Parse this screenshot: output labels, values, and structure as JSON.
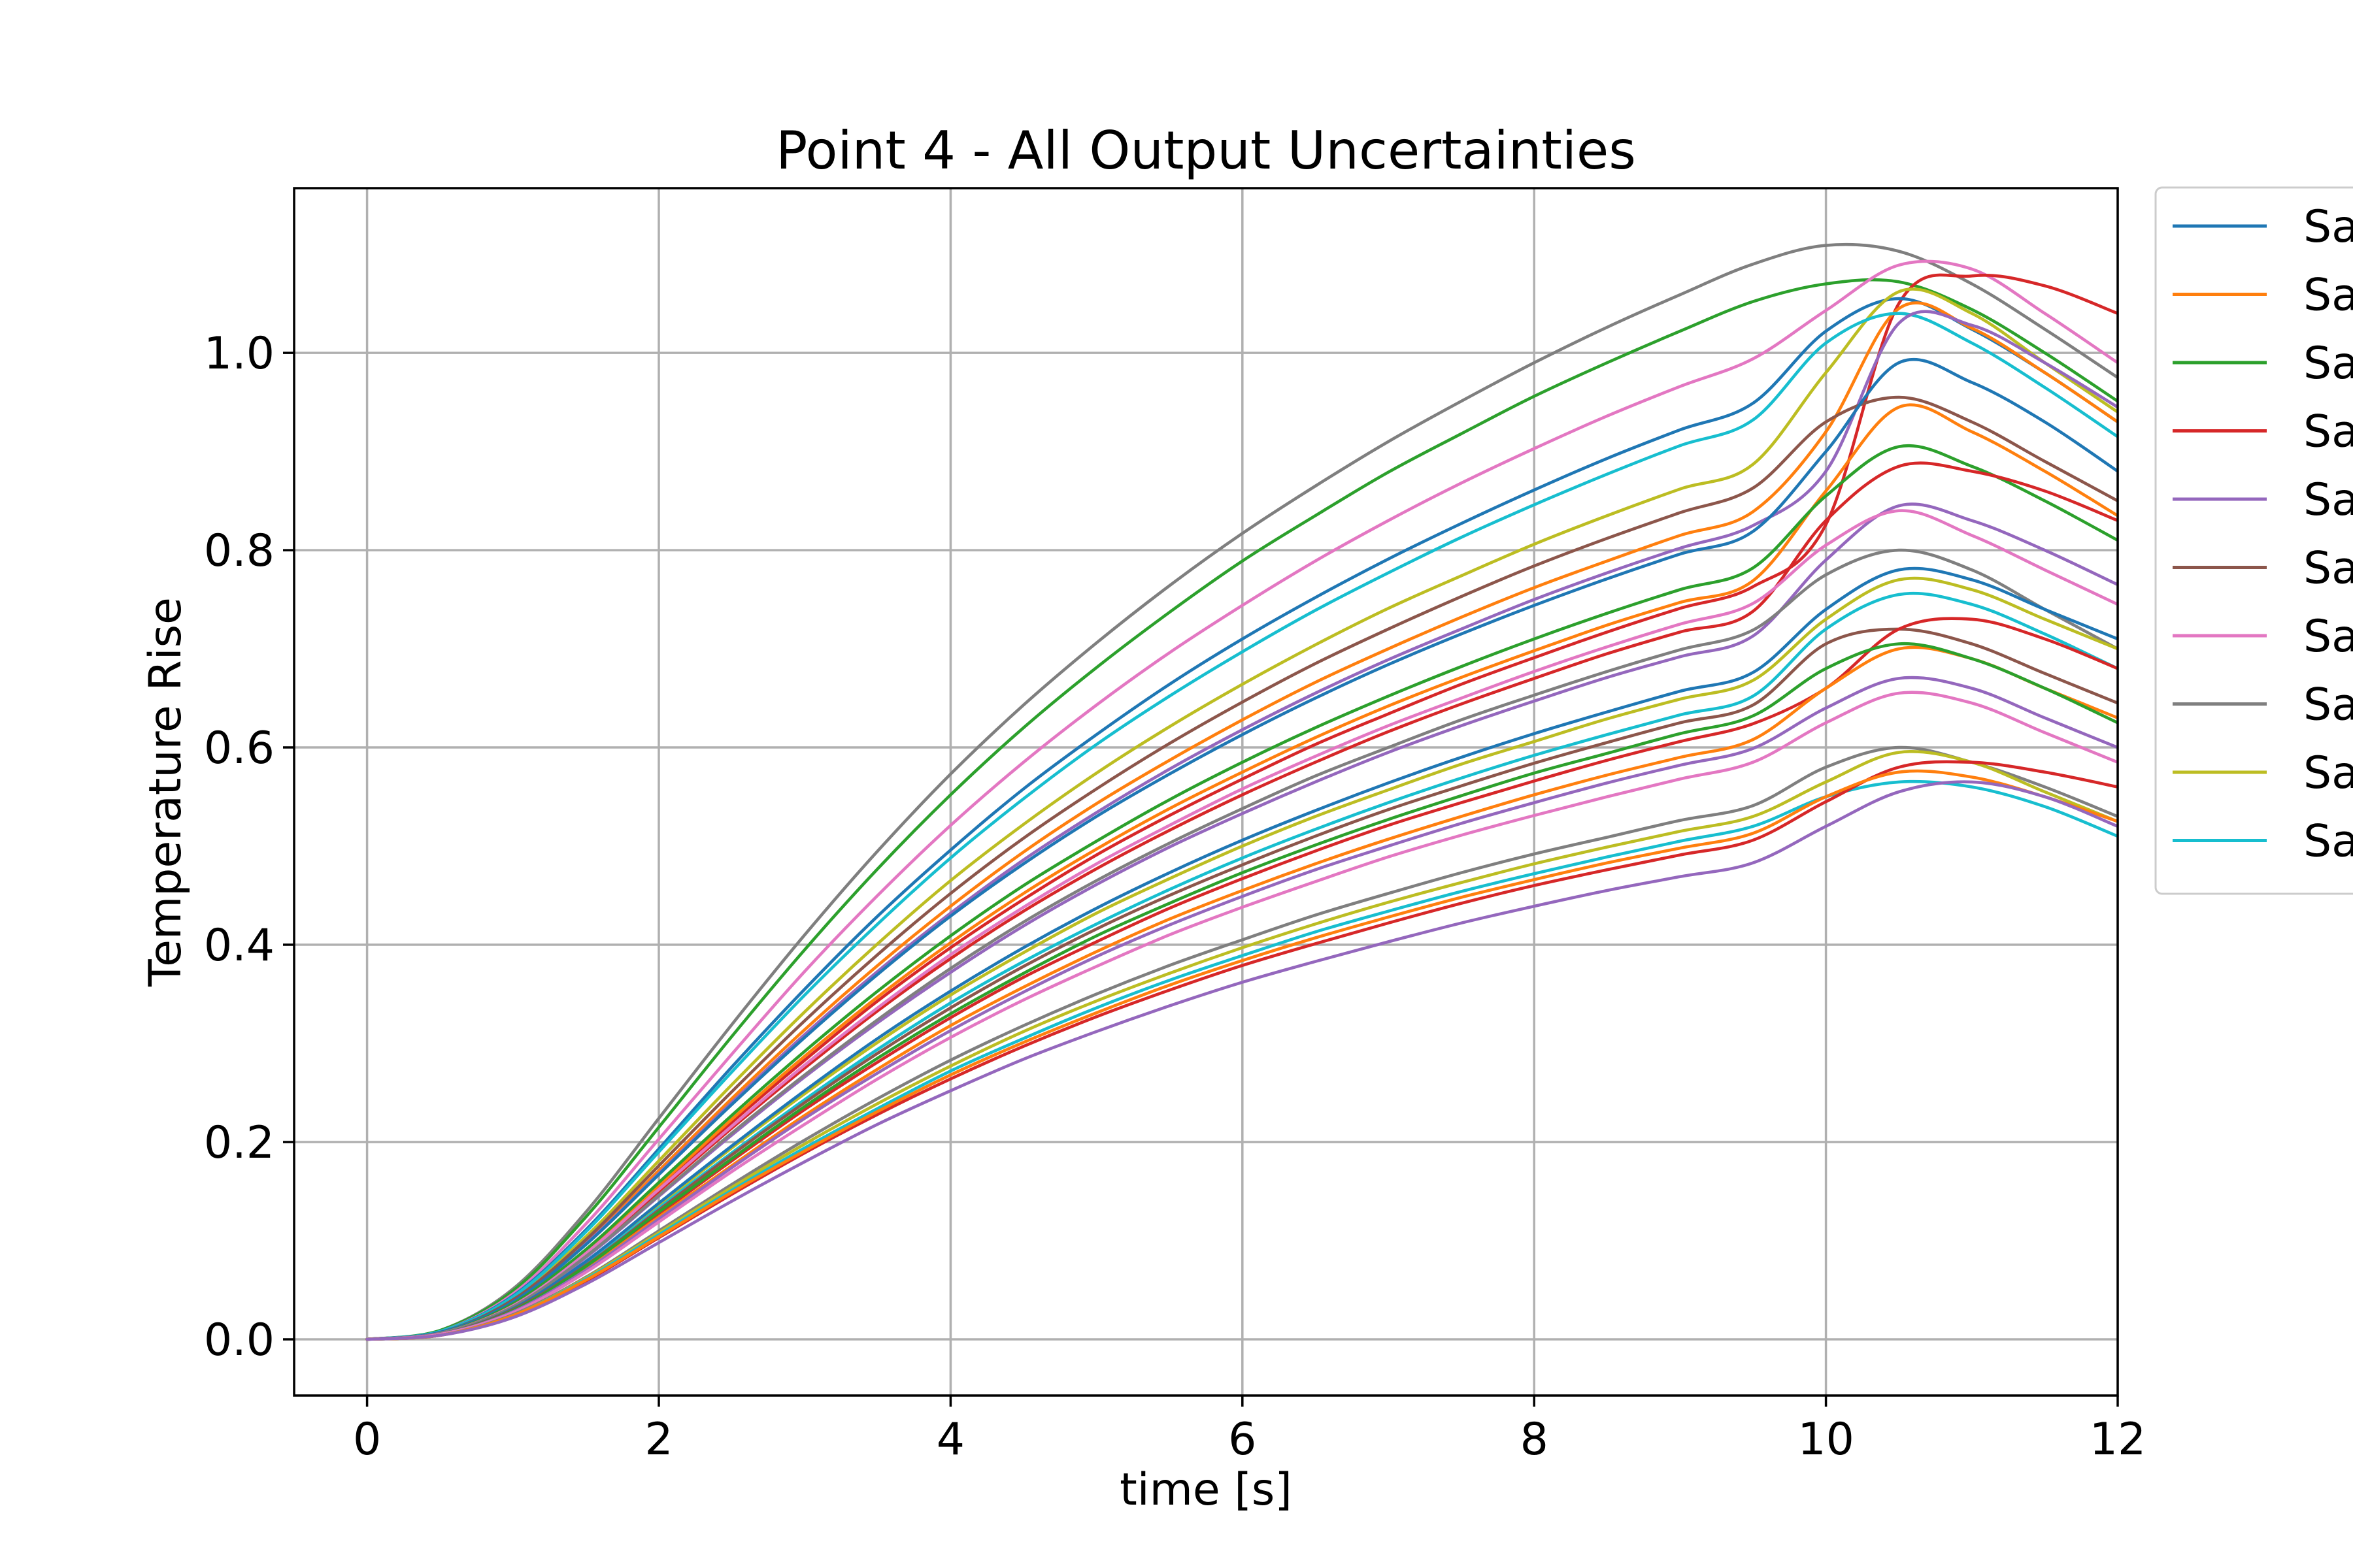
{
  "chart_data": {
    "type": "line",
    "title": "Point 4 - All Output Uncertainties",
    "xlabel": "time [s]",
    "ylabel": "Temperature Rise",
    "xlim": [
      -0.5,
      12
    ],
    "ylim": [
      -0.057,
      1.167
    ],
    "x_ticks": [
      {
        "value": 0,
        "label": "0"
      },
      {
        "value": 2,
        "label": "2"
      },
      {
        "value": 4,
        "label": "4"
      },
      {
        "value": 6,
        "label": "6"
      },
      {
        "value": 8,
        "label": "8"
      },
      {
        "value": 10,
        "label": "10"
      },
      {
        "value": 12,
        "label": "12"
      }
    ],
    "y_ticks": [
      {
        "value": 0.0,
        "label": "0.0"
      },
      {
        "value": 0.2,
        "label": "0.2"
      },
      {
        "value": 0.4,
        "label": "0.4"
      },
      {
        "value": 0.6,
        "label": "0.6"
      },
      {
        "value": 0.8,
        "label": "0.8"
      },
      {
        "value": 1.0,
        "label": "1.0"
      }
    ],
    "grid": true,
    "legend_position": "outside-right-top",
    "legend_entries": [
      {
        "label": "Sa",
        "color": "#1f77b4"
      },
      {
        "label": "Sa",
        "color": "#ff7f0e"
      },
      {
        "label": "Sa",
        "color": "#2ca02c"
      },
      {
        "label": "Sa",
        "color": "#d62728"
      },
      {
        "label": "Sa",
        "color": "#9467bd"
      },
      {
        "label": "Sa",
        "color": "#8c564b"
      },
      {
        "label": "Sa",
        "color": "#e377c2"
      },
      {
        "label": "Sa",
        "color": "#7f7f7f"
      },
      {
        "label": "Sa",
        "color": "#bcbd22"
      },
      {
        "label": "Sa",
        "color": "#17becf"
      }
    ],
    "x": [
      0,
      0.5,
      1,
      1.5,
      2,
      2.5,
      3,
      3.5,
      4,
      4.5,
      5,
      5.5,
      6,
      6.5,
      7,
      7.5,
      8,
      8.5,
      9,
      9.5,
      10,
      10.5,
      11,
      11.5,
      12
    ],
    "series": [
      {
        "color": "#7f7f7f",
        "values": [
          0,
          0.009,
          0.051,
          0.129,
          0.224,
          0.319,
          0.41,
          0.495,
          0.573,
          0.643,
          0.706,
          0.764,
          0.817,
          0.865,
          0.91,
          0.951,
          0.99,
          1.026,
          1.059,
          1.09,
          1.109,
          1.103,
          1.07,
          1.024,
          0.975
        ]
      },
      {
        "color": "#2ca02c",
        "values": [
          0,
          0.009,
          0.049,
          0.124,
          0.215,
          0.307,
          0.395,
          0.477,
          0.552,
          0.62,
          0.681,
          0.737,
          0.789,
          0.835,
          0.879,
          0.918,
          0.956,
          0.99,
          1.022,
          1.052,
          1.07,
          1.072,
          1.044,
          1.0,
          0.951
        ]
      },
      {
        "color": "#e377c2",
        "values": [
          0,
          0.008,
          0.046,
          0.117,
          0.203,
          0.289,
          0.373,
          0.45,
          0.521,
          0.585,
          0.643,
          0.696,
          0.744,
          0.789,
          0.83,
          0.868,
          0.903,
          0.936,
          0.966,
          0.994,
          1.043,
          1.089,
          1.085,
          1.04,
          0.99
        ]
      },
      {
        "color": "#d62728",
        "values": [
          0,
          0.006,
          0.035,
          0.088,
          0.154,
          0.22,
          0.283,
          0.343,
          0.397,
          0.446,
          0.491,
          0.531,
          0.568,
          0.603,
          0.634,
          0.664,
          0.691,
          0.717,
          0.741,
          0.763,
          0.826,
          1.05,
          1.078,
          1.068,
          1.04
        ]
      },
      {
        "color": "#1f77b4",
        "values": [
          0,
          0.008,
          0.044,
          0.111,
          0.193,
          0.276,
          0.355,
          0.429,
          0.496,
          0.558,
          0.613,
          0.664,
          0.71,
          0.752,
          0.791,
          0.827,
          0.861,
          0.893,
          0.922,
          0.949,
          1.022,
          1.055,
          1.024,
          0.98,
          0.93
        ]
      },
      {
        "color": "#bcbd22",
        "values": [
          0,
          0.007,
          0.041,
          0.104,
          0.181,
          0.258,
          0.332,
          0.401,
          0.465,
          0.522,
          0.574,
          0.621,
          0.664,
          0.704,
          0.741,
          0.774,
          0.806,
          0.835,
          0.862,
          0.887,
          0.98,
          1.062,
          1.04,
          0.99,
          0.94
        ]
      },
      {
        "color": "#ff7f0e",
        "values": [
          0,
          0.007,
          0.039,
          0.098,
          0.171,
          0.244,
          0.314,
          0.379,
          0.439,
          0.494,
          0.543,
          0.587,
          0.628,
          0.666,
          0.7,
          0.732,
          0.762,
          0.789,
          0.815,
          0.839,
          0.92,
          1.045,
          1.025,
          0.98,
          0.93
        ]
      },
      {
        "color": "#17becf",
        "values": [
          0,
          0.008,
          0.043,
          0.109,
          0.19,
          0.271,
          0.349,
          0.421,
          0.488,
          0.548,
          0.603,
          0.652,
          0.697,
          0.739,
          0.777,
          0.813,
          0.846,
          0.877,
          0.906,
          0.932,
          1.01,
          1.04,
          1.01,
          0.965,
          0.915
        ]
      },
      {
        "color": "#9467bd",
        "values": [
          0,
          0.007,
          0.038,
          0.097,
          0.168,
          0.24,
          0.309,
          0.373,
          0.432,
          0.486,
          0.534,
          0.578,
          0.618,
          0.655,
          0.689,
          0.72,
          0.75,
          0.777,
          0.802,
          0.825,
          0.88,
          1.03,
          1.028,
          0.99,
          0.945
        ]
      },
      {
        "color": "#8c564b",
        "values": [
          0,
          0.007,
          0.04,
          0.101,
          0.176,
          0.251,
          0.323,
          0.39,
          0.452,
          0.508,
          0.558,
          0.604,
          0.646,
          0.685,
          0.72,
          0.753,
          0.784,
          0.812,
          0.838,
          0.863,
          0.93,
          0.955,
          0.93,
          0.89,
          0.85
        ]
      },
      {
        "color": "#1f77b4",
        "values": [
          0,
          0.007,
          0.038,
          0.096,
          0.167,
          0.238,
          0.306,
          0.37,
          0.429,
          0.482,
          0.53,
          0.573,
          0.613,
          0.65,
          0.684,
          0.715,
          0.744,
          0.771,
          0.796,
          0.819,
          0.9,
          0.99,
          0.97,
          0.93,
          0.88
        ]
      },
      {
        "color": "#ff7f0e",
        "values": [
          0,
          0.006,
          0.035,
          0.09,
          0.156,
          0.223,
          0.287,
          0.347,
          0.402,
          0.452,
          0.497,
          0.538,
          0.575,
          0.61,
          0.642,
          0.671,
          0.698,
          0.724,
          0.747,
          0.769,
          0.86,
          0.945,
          0.92,
          0.88,
          0.835
        ]
      },
      {
        "color": "#2ca02c",
        "values": [
          0,
          0.006,
          0.036,
          0.091,
          0.159,
          0.227,
          0.292,
          0.353,
          0.409,
          0.46,
          0.505,
          0.547,
          0.585,
          0.62,
          0.652,
          0.682,
          0.71,
          0.736,
          0.76,
          0.782,
          0.855,
          0.905,
          0.885,
          0.85,
          0.81
        ]
      },
      {
        "color": "#d62728",
        "values": [
          0,
          0.006,
          0.034,
          0.086,
          0.15,
          0.214,
          0.275,
          0.333,
          0.386,
          0.434,
          0.477,
          0.516,
          0.552,
          0.585,
          0.616,
          0.644,
          0.67,
          0.695,
          0.717,
          0.738,
          0.83,
          0.885,
          0.88,
          0.86,
          0.83
        ]
      },
      {
        "color": "#9467bd",
        "values": [
          0,
          0.006,
          0.033,
          0.083,
          0.145,
          0.207,
          0.266,
          0.321,
          0.372,
          0.419,
          0.461,
          0.499,
          0.533,
          0.565,
          0.595,
          0.622,
          0.647,
          0.671,
          0.692,
          0.713,
          0.79,
          0.845,
          0.83,
          0.8,
          0.765
        ]
      },
      {
        "color": "#e377c2",
        "values": [
          0,
          0.006,
          0.034,
          0.087,
          0.152,
          0.216,
          0.278,
          0.336,
          0.39,
          0.438,
          0.482,
          0.521,
          0.558,
          0.591,
          0.622,
          0.65,
          0.677,
          0.702,
          0.725,
          0.746,
          0.805,
          0.84,
          0.815,
          0.78,
          0.745
        ]
      },
      {
        "color": "#7f7f7f",
        "values": [
          0,
          0.006,
          0.033,
          0.084,
          0.146,
          0.209,
          0.268,
          0.324,
          0.376,
          0.423,
          0.465,
          0.503,
          0.538,
          0.571,
          0.6,
          0.628,
          0.653,
          0.677,
          0.699,
          0.719,
          0.775,
          0.8,
          0.78,
          0.74,
          0.7
        ]
      },
      {
        "color": "#bcbd22",
        "values": [
          0,
          0.005,
          0.031,
          0.078,
          0.136,
          0.194,
          0.249,
          0.301,
          0.349,
          0.392,
          0.432,
          0.467,
          0.5,
          0.53,
          0.557,
          0.583,
          0.606,
          0.629,
          0.649,
          0.668,
          0.73,
          0.77,
          0.76,
          0.73,
          0.7
        ]
      },
      {
        "color": "#17becf",
        "values": [
          0,
          0.005,
          0.03,
          0.076,
          0.133,
          0.189,
          0.243,
          0.294,
          0.341,
          0.383,
          0.421,
          0.456,
          0.488,
          0.517,
          0.544,
          0.569,
          0.592,
          0.613,
          0.633,
          0.652,
          0.72,
          0.755,
          0.745,
          0.715,
          0.68
        ]
      },
      {
        "color": "#1f77b4",
        "values": [
          0,
          0.005,
          0.031,
          0.079,
          0.138,
          0.196,
          0.252,
          0.305,
          0.353,
          0.397,
          0.437,
          0.473,
          0.506,
          0.536,
          0.564,
          0.59,
          0.614,
          0.636,
          0.657,
          0.676,
          0.74,
          0.78,
          0.77,
          0.74,
          0.71
        ]
      },
      {
        "color": "#8c564b",
        "values": [
          0,
          0.005,
          0.03,
          0.075,
          0.131,
          0.187,
          0.24,
          0.29,
          0.336,
          0.378,
          0.416,
          0.45,
          0.481,
          0.51,
          0.537,
          0.561,
          0.584,
          0.605,
          0.625,
          0.643,
          0.705,
          0.72,
          0.705,
          0.675,
          0.645
        ]
      },
      {
        "color": "#d62728",
        "values": [
          0,
          0.005,
          0.029,
          0.073,
          0.127,
          0.181,
          0.233,
          0.281,
          0.326,
          0.367,
          0.403,
          0.437,
          0.467,
          0.495,
          0.521,
          0.544,
          0.566,
          0.587,
          0.606,
          0.624,
          0.66,
          0.72,
          0.73,
          0.71,
          0.68
        ]
      },
      {
        "color": "#ff7f0e",
        "values": [
          0,
          0.005,
          0.028,
          0.071,
          0.124,
          0.176,
          0.227,
          0.274,
          0.318,
          0.357,
          0.393,
          0.426,
          0.455,
          0.482,
          0.507,
          0.53,
          0.552,
          0.572,
          0.59,
          0.608,
          0.66,
          0.7,
          0.69,
          0.66,
          0.63
        ]
      },
      {
        "color": "#2ca02c",
        "values": [
          0,
          0.005,
          0.029,
          0.074,
          0.129,
          0.183,
          0.236,
          0.285,
          0.33,
          0.371,
          0.409,
          0.442,
          0.473,
          0.501,
          0.527,
          0.551,
          0.574,
          0.594,
          0.614,
          0.632,
          0.68,
          0.705,
          0.69,
          0.66,
          0.625
        ]
      },
      {
        "color": "#9467bd",
        "values": [
          0,
          0.005,
          0.028,
          0.07,
          0.122,
          0.174,
          0.224,
          0.27,
          0.313,
          0.352,
          0.388,
          0.42,
          0.449,
          0.476,
          0.5,
          0.523,
          0.544,
          0.564,
          0.582,
          0.599,
          0.64,
          0.67,
          0.66,
          0.63,
          0.6
        ]
      },
      {
        "color": "#e377c2",
        "values": [
          0,
          0.005,
          0.027,
          0.068,
          0.119,
          0.17,
          0.218,
          0.264,
          0.306,
          0.344,
          0.378,
          0.41,
          0.438,
          0.464,
          0.489,
          0.511,
          0.531,
          0.55,
          0.568,
          0.585,
          0.625,
          0.655,
          0.645,
          0.615,
          0.585
        ]
      },
      {
        "color": "#7f7f7f",
        "values": [
          0,
          0.004,
          0.025,
          0.063,
          0.11,
          0.157,
          0.202,
          0.244,
          0.283,
          0.318,
          0.35,
          0.379,
          0.405,
          0.43,
          0.452,
          0.473,
          0.492,
          0.509,
          0.526,
          0.541,
          0.58,
          0.6,
          0.585,
          0.56,
          0.53
        ]
      },
      {
        "color": "#bcbd22",
        "values": [
          0,
          0.004,
          0.024,
          0.062,
          0.108,
          0.154,
          0.198,
          0.239,
          0.277,
          0.312,
          0.343,
          0.371,
          0.397,
          0.421,
          0.443,
          0.463,
          0.482,
          0.499,
          0.515,
          0.53,
          0.565,
          0.595,
          0.585,
          0.555,
          0.525
        ]
      },
      {
        "color": "#17becf",
        "values": [
          0,
          0.004,
          0.024,
          0.061,
          0.106,
          0.151,
          0.194,
          0.234,
          0.272,
          0.305,
          0.336,
          0.364,
          0.389,
          0.413,
          0.434,
          0.454,
          0.472,
          0.489,
          0.505,
          0.52,
          0.55,
          0.565,
          0.56,
          0.54,
          0.51
        ]
      },
      {
        "color": "#d62728",
        "values": [
          0,
          0.004,
          0.023,
          0.059,
          0.103,
          0.147,
          0.189,
          0.228,
          0.264,
          0.297,
          0.327,
          0.354,
          0.379,
          0.401,
          0.422,
          0.442,
          0.46,
          0.476,
          0.491,
          0.506,
          0.545,
          0.58,
          0.585,
          0.575,
          0.56
        ]
      },
      {
        "color": "#ff7f0e",
        "values": [
          0,
          0.004,
          0.024,
          0.06,
          0.104,
          0.149,
          0.191,
          0.231,
          0.268,
          0.301,
          0.331,
          0.359,
          0.384,
          0.407,
          0.428,
          0.448,
          0.466,
          0.483,
          0.498,
          0.513,
          0.55,
          0.575,
          0.57,
          0.55,
          0.525
        ]
      },
      {
        "color": "#9467bd",
        "values": [
          0,
          0.004,
          0.022,
          0.056,
          0.098,
          0.14,
          0.18,
          0.218,
          0.252,
          0.284,
          0.312,
          0.338,
          0.362,
          0.383,
          0.403,
          0.422,
          0.439,
          0.455,
          0.469,
          0.483,
          0.52,
          0.555,
          0.565,
          0.55,
          0.52
        ]
      }
    ]
  }
}
